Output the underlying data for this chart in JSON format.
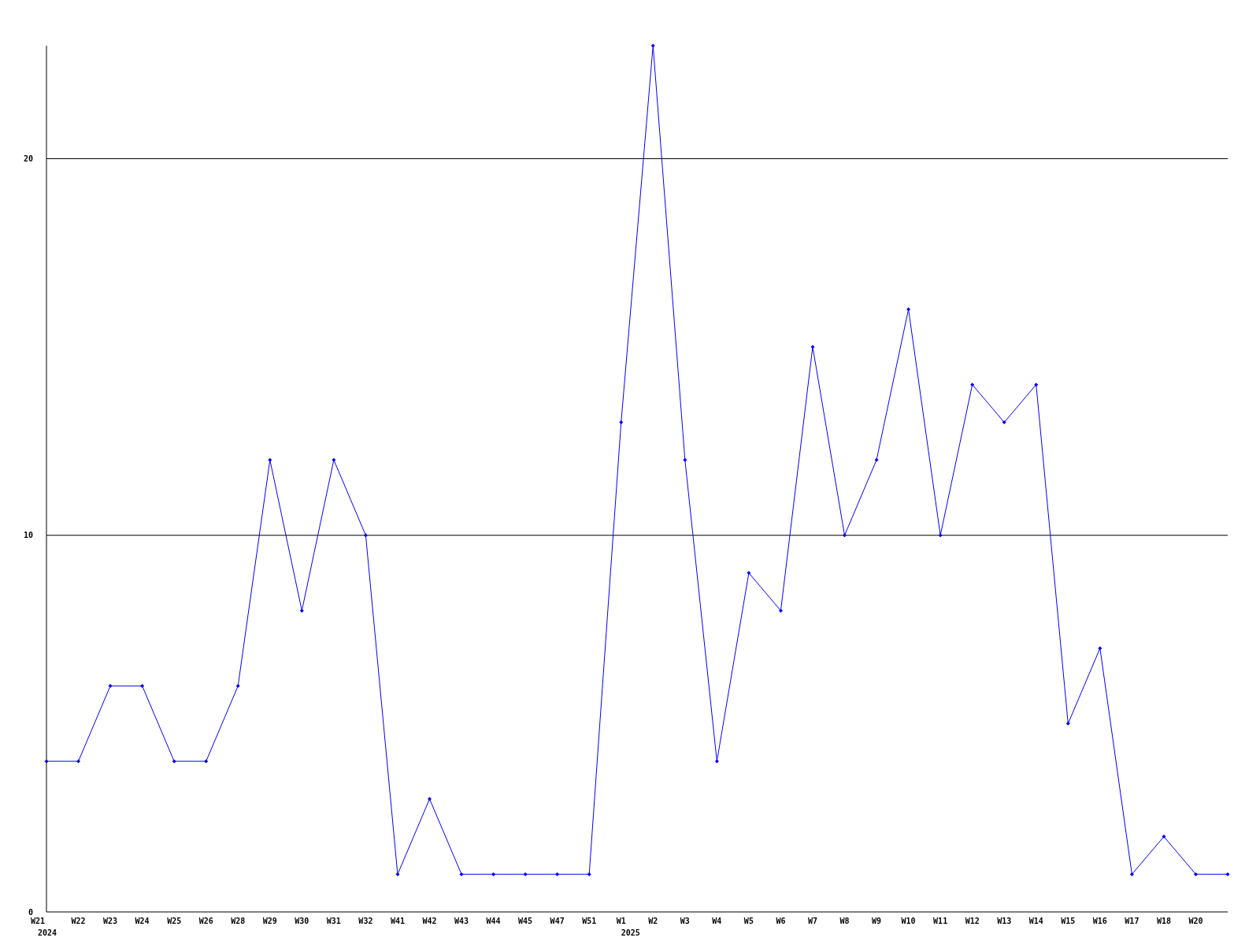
{
  "chart_data": {
    "type": "line",
    "categories": [
      "W21\n2024",
      "W22",
      "W23",
      "W24",
      "W25",
      "W26",
      "W28",
      "W29",
      "W30",
      "W31",
      "W32",
      "W41",
      "W42",
      "W43",
      "W44",
      "W45",
      "W47",
      "W51",
      "W1\n2025",
      "W2",
      "W3",
      "W4",
      "W5",
      "W6",
      "W7",
      "W8",
      "W9",
      "W10",
      "W11",
      "W12",
      "W13",
      "W14",
      "W15",
      "W16",
      "W17",
      "W18",
      "W20",
      null
    ],
    "series": [
      {
        "color": "#0000ff",
        "values": [
          4,
          4,
          6,
          6,
          4,
          4,
          6,
          12,
          8,
          12,
          10,
          1,
          3,
          1,
          1,
          1,
          1,
          1,
          13,
          23,
          12,
          4,
          9,
          8,
          15,
          10,
          12,
          16,
          10,
          14,
          13,
          14,
          5,
          7,
          1,
          2,
          1,
          1
        ]
      }
    ],
    "ylim": [
      0,
      23
    ],
    "yticks": [
      0,
      10,
      20
    ],
    "grid": "y",
    "marker": "diamond",
    "line_style": "solid"
  }
}
